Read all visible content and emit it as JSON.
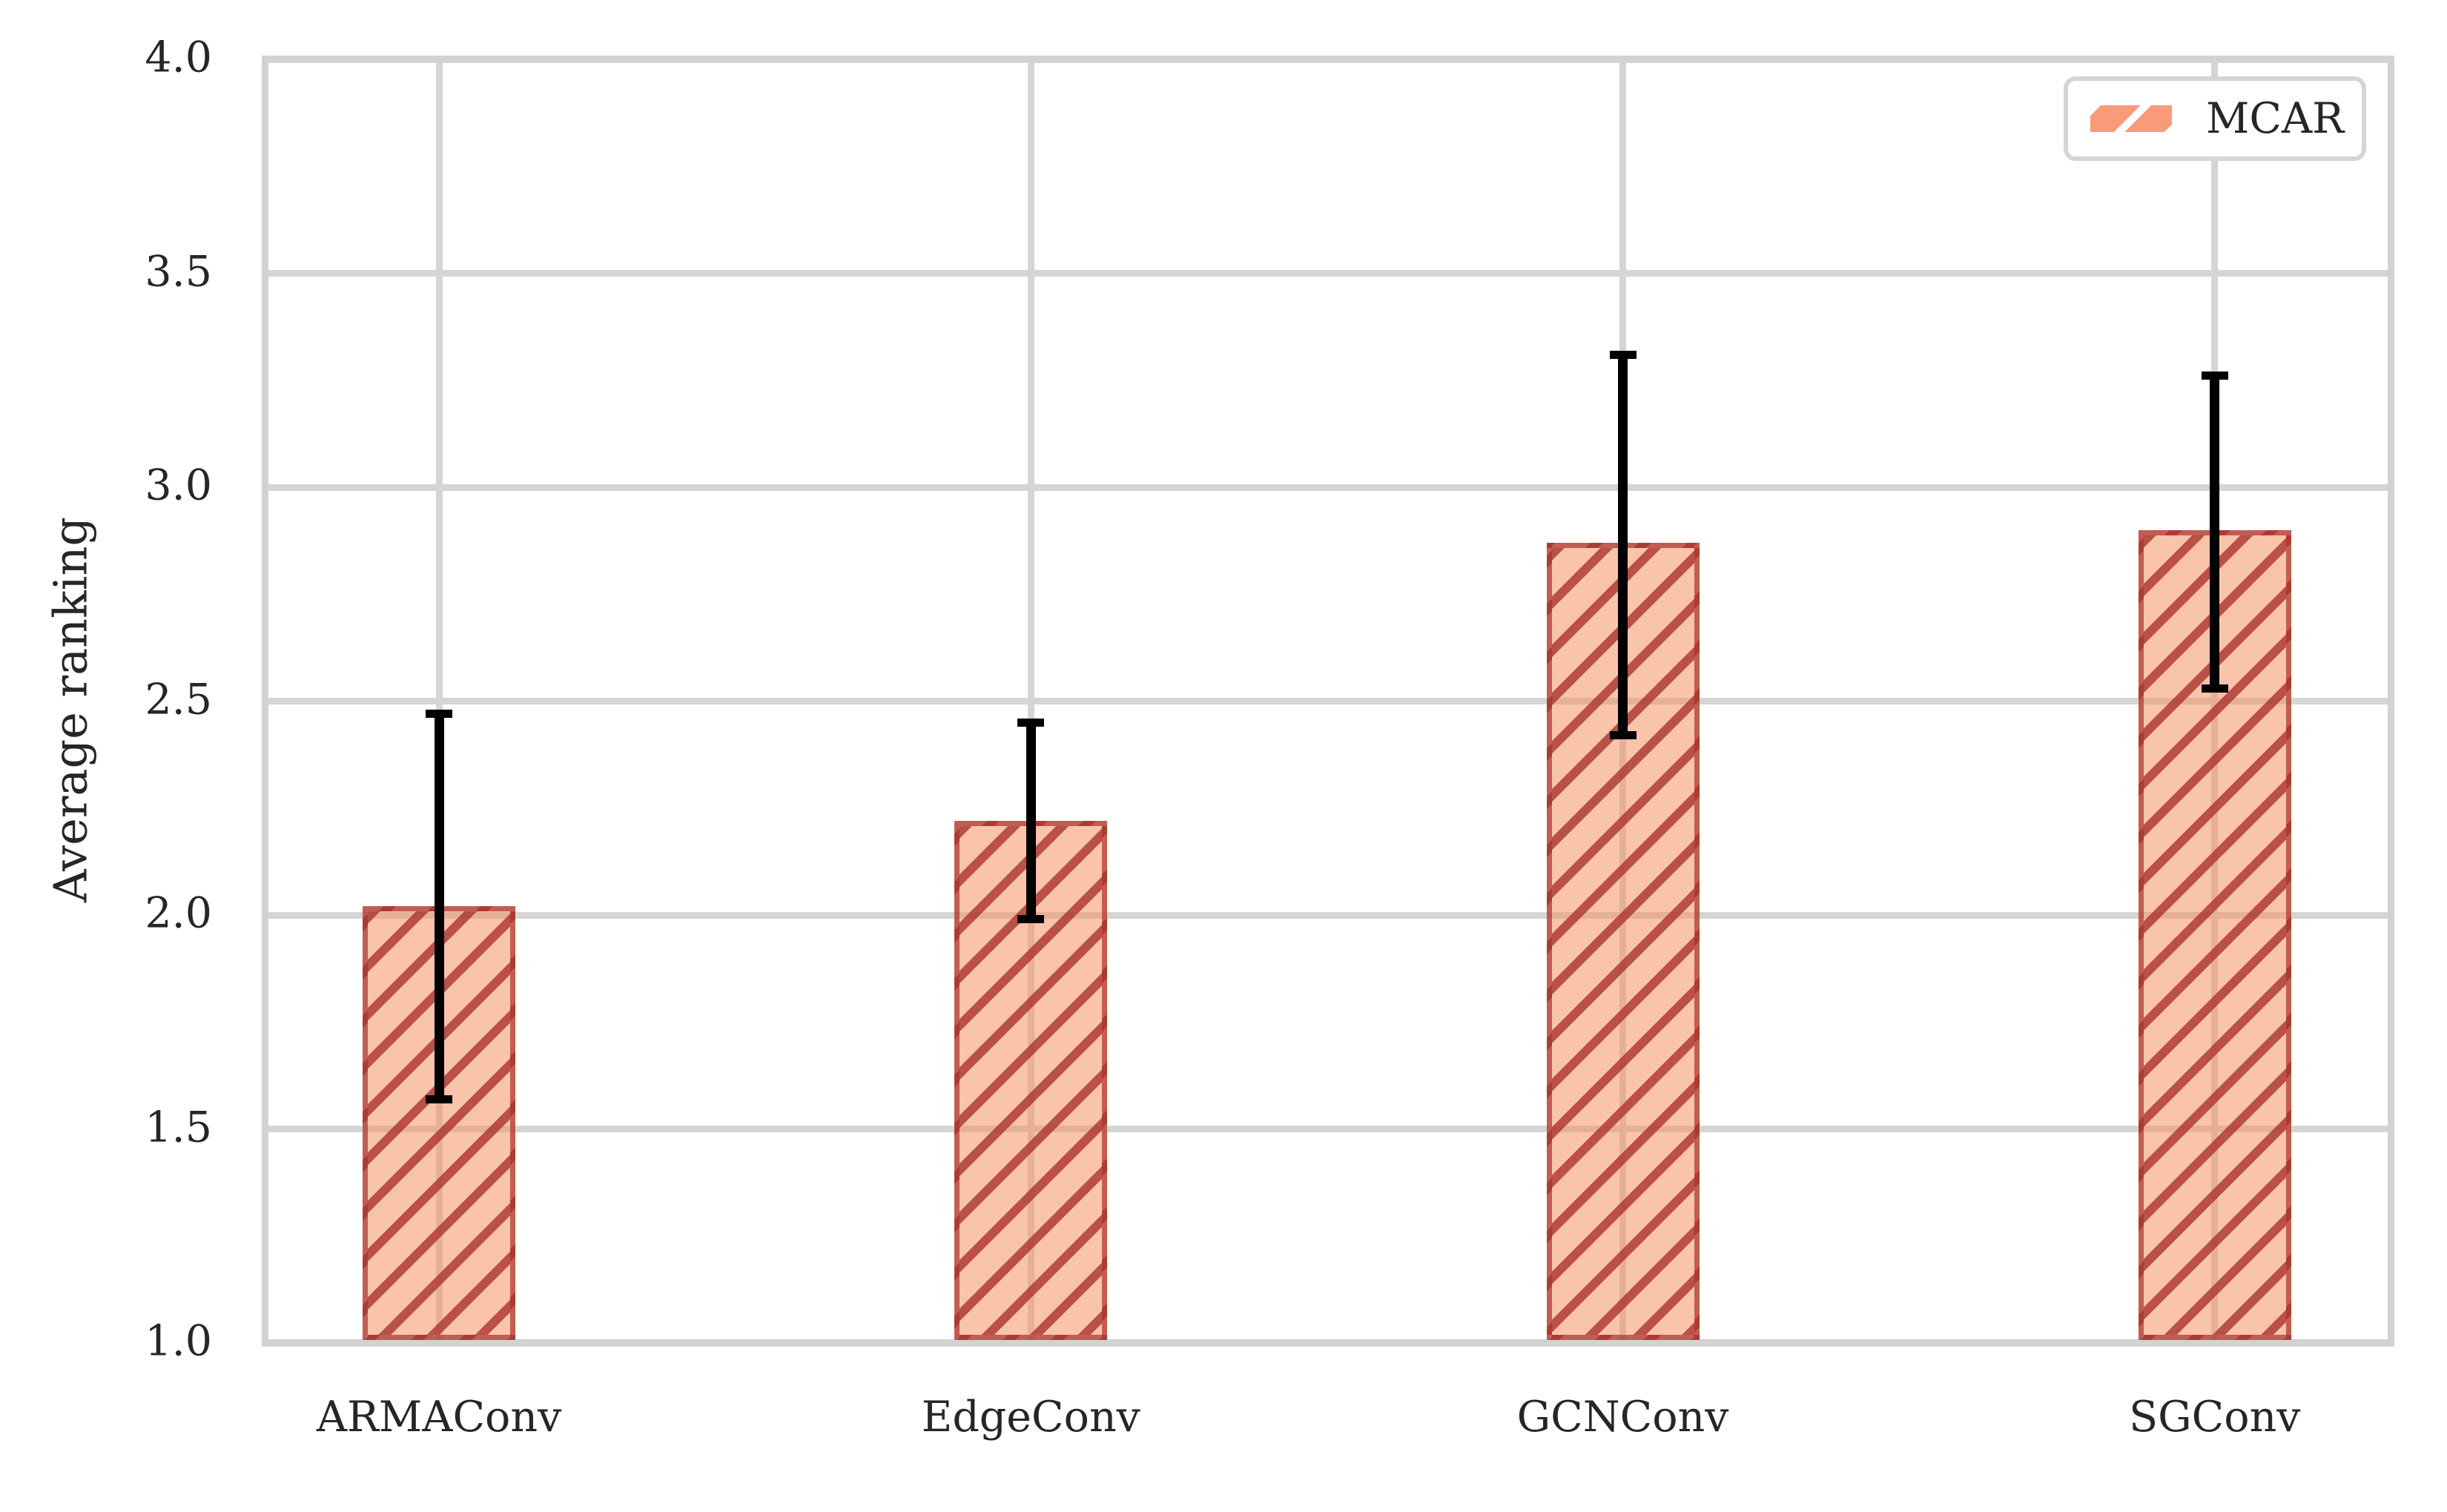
{
  "figure": {
    "background": "#ffffff"
  },
  "axes": {
    "ylabel": "Average ranking",
    "xlabel": ""
  },
  "legend": {
    "label": "MCAR",
    "swatch_fill": "#f99b79",
    "swatch_hatch_color": "#ffffff",
    "position": "upper right"
  },
  "colors": {
    "bar_fill": "#fac7ae",
    "bar_hatch": "#b4473f",
    "bar_edge": "#a8322b",
    "error_bar": "#000000",
    "grid": "#d5d5d5",
    "text": "#262626"
  },
  "chart_data": {
    "type": "bar",
    "title": "",
    "xlabel": "",
    "ylabel": "Average ranking",
    "categories": [
      "ARMAConv",
      "EdgeConv",
      "GCNConv",
      "SGConv"
    ],
    "series": [
      {
        "name": "MCAR",
        "values": [
          2.02,
          2.22,
          2.87,
          2.9
        ],
        "err_low": [
          1.57,
          1.99,
          2.42,
          2.53
        ],
        "err_high": [
          2.47,
          2.45,
          3.31,
          3.26
        ]
      }
    ],
    "ylim": [
      1.0,
      4.0
    ],
    "yticks": [
      4.0,
      3.5,
      3.0,
      2.5,
      2.0,
      1.5,
      1.0
    ],
    "grid": true,
    "hatch": "/",
    "legend_position": "upper right"
  }
}
